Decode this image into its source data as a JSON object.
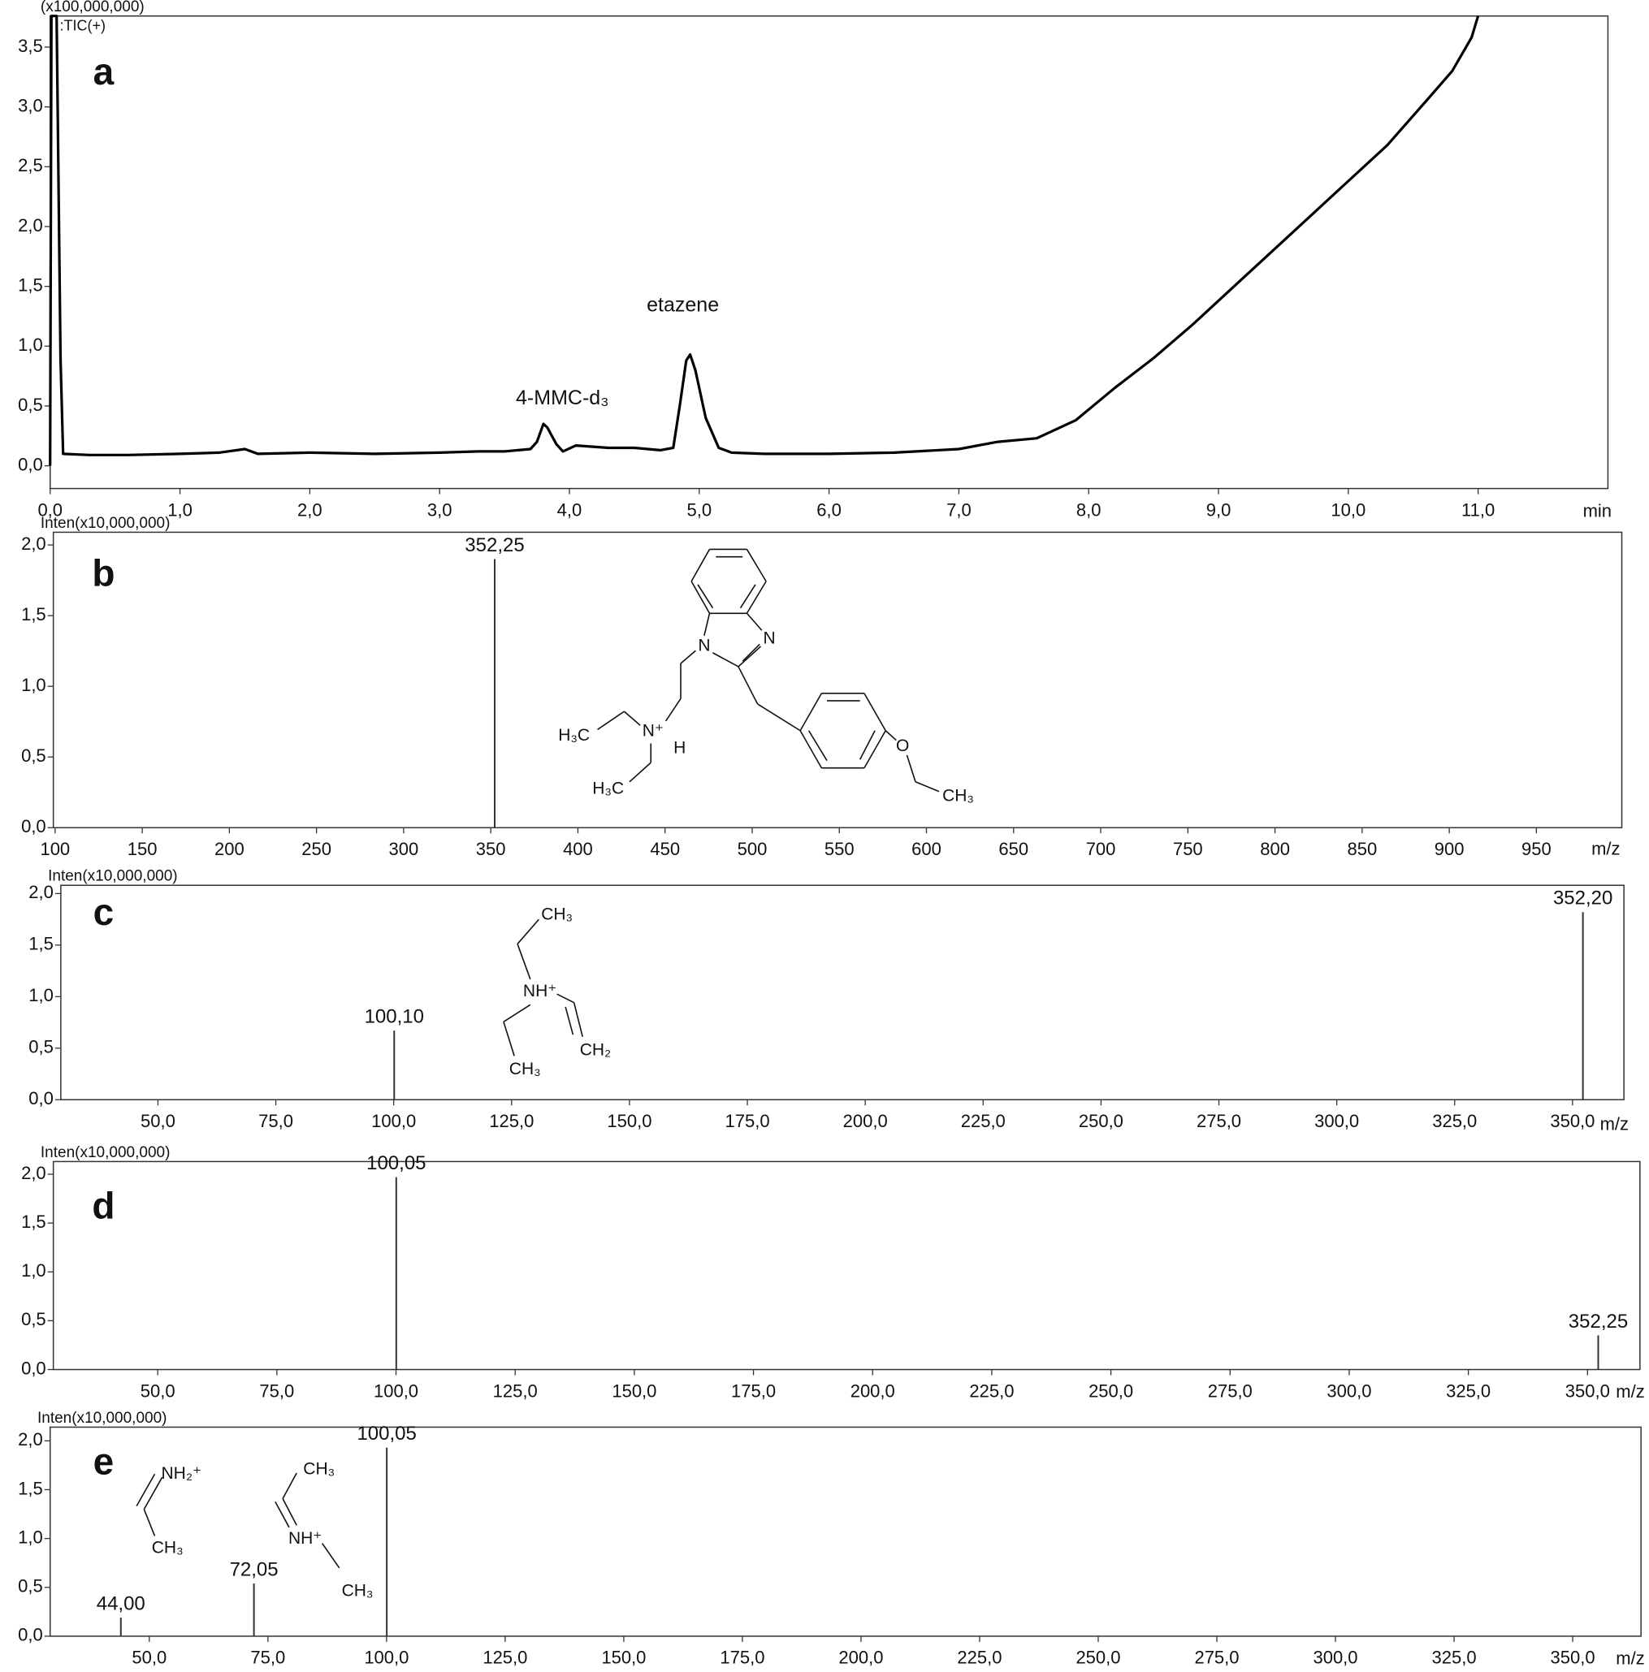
{
  "chart_data": [
    {
      "type": "line",
      "panel_label": "a",
      "y_axis_label": "(x100,000,000)",
      "trace_label": ":TIC(+)",
      "x_axis_label": "min",
      "annotations": [
        "4-MMC-d₃",
        "etazene"
      ],
      "color": "#000000",
      "x": [
        0,
        0.01,
        0.02,
        0.05,
        0.08,
        0.1,
        0.3,
        0.6,
        1.0,
        1.3,
        1.5,
        1.6,
        2.0,
        2.5,
        3.0,
        3.3,
        3.5,
        3.7,
        3.75,
        3.8,
        3.83,
        3.9,
        3.95,
        4.05,
        4.3,
        4.5,
        4.7,
        4.8,
        4.85,
        4.9,
        4.93,
        4.97,
        5.05,
        5.15,
        5.25,
        5.5,
        6.0,
        6.5,
        7.0,
        7.3,
        7.6,
        7.9,
        8.2,
        8.5,
        8.8,
        9.1,
        9.4,
        9.7,
        10.0,
        10.3,
        10.6,
        10.8,
        10.95,
        11.0
      ],
      "values": [
        0,
        3.76,
        3.76,
        3.76,
        0.9,
        0.1,
        0.09,
        0.09,
        0.1,
        0.11,
        0.14,
        0.1,
        0.11,
        0.1,
        0.11,
        0.12,
        0.12,
        0.14,
        0.2,
        0.35,
        0.32,
        0.18,
        0.12,
        0.17,
        0.15,
        0.15,
        0.13,
        0.15,
        0.5,
        0.88,
        0.93,
        0.8,
        0.4,
        0.15,
        0.11,
        0.1,
        0.1,
        0.11,
        0.14,
        0.2,
        0.23,
        0.38,
        0.65,
        0.9,
        1.18,
        1.48,
        1.78,
        2.08,
        2.38,
        2.68,
        3.05,
        3.3,
        3.58,
        3.76
      ],
      "xlim": [
        0,
        12.0
      ],
      "ylim": [
        -0.19,
        3.76
      ],
      "xticks": [
        {
          "value": 0,
          "label": "0,0"
        },
        {
          "value": 1,
          "label": "1,0"
        },
        {
          "value": 2,
          "label": "2,0"
        },
        {
          "value": 3,
          "label": "3,0"
        },
        {
          "value": 4,
          "label": "4,0"
        },
        {
          "value": 5,
          "label": "5,0"
        },
        {
          "value": 6,
          "label": "6,0"
        },
        {
          "value": 7,
          "label": "7,0"
        },
        {
          "value": 8,
          "label": "8,0"
        },
        {
          "value": 9,
          "label": "9,0"
        },
        {
          "value": 10,
          "label": "10,0"
        },
        {
          "value": 11,
          "label": "11,0"
        }
      ],
      "yticks": [
        {
          "value": 0,
          "label": "0,0"
        },
        {
          "value": 0.5,
          "label": "0,5"
        },
        {
          "value": 1,
          "label": "1,0"
        },
        {
          "value": 1.5,
          "label": "1,5"
        },
        {
          "value": 2,
          "label": "2,0"
        },
        {
          "value": 2.5,
          "label": "2,5"
        },
        {
          "value": 3,
          "label": "3,0"
        },
        {
          "value": 3.5,
          "label": "3,5"
        }
      ]
    },
    {
      "type": "stem",
      "panel_label": "b",
      "y_axis_label": "Inten(x10,000,000)",
      "x_axis_label": "m/z",
      "color": "#333333",
      "structure_labels": [
        "N",
        "N",
        "N⁺",
        "H",
        "H₃C",
        "H₃C",
        "O",
        "CH₃"
      ],
      "x": [
        352.25
      ],
      "x_labels": [
        "352,25"
      ],
      "values": [
        1.9
      ],
      "xlim": [
        99,
        999
      ],
      "ylim": [
        0,
        2.09
      ],
      "xticks": [
        100,
        150,
        200,
        250,
        300,
        350,
        400,
        450,
        500,
        550,
        600,
        650,
        700,
        750,
        800,
        850,
        900,
        950
      ],
      "yticks": [
        {
          "value": 0,
          "label": "0,0"
        },
        {
          "value": 0.5,
          "label": "0,5"
        },
        {
          "value": 1,
          "label": "1,0"
        },
        {
          "value": 1.5,
          "label": "1,5"
        },
        {
          "value": 2,
          "label": "2,0"
        }
      ]
    },
    {
      "type": "stem",
      "panel_label": "c",
      "y_axis_label": "Inten(x10,000,000)",
      "x_axis_label": "m/z",
      "color": "#333333",
      "structure_labels": [
        "CH₃",
        "NH⁺",
        "CH₂",
        "CH₃"
      ],
      "x": [
        100.1,
        352.2
      ],
      "x_labels": [
        "100,10",
        "352,20"
      ],
      "values": [
        0.67,
        1.82
      ],
      "xlim": [
        29.4,
        360.9
      ],
      "ylim": [
        0,
        2.08
      ],
      "xticks": [
        {
          "value": 50,
          "label": "50,0"
        },
        {
          "value": 75,
          "label": "75,0"
        },
        {
          "value": 100,
          "label": "100,0"
        },
        {
          "value": 125,
          "label": "125,0"
        },
        {
          "value": 150,
          "label": "150,0"
        },
        {
          "value": 175,
          "label": "175,0"
        },
        {
          "value": 200,
          "label": "200,0"
        },
        {
          "value": 225,
          "label": "225,0"
        },
        {
          "value": 250,
          "label": "250,0"
        },
        {
          "value": 275,
          "label": "275,0"
        },
        {
          "value": 300,
          "label": "300,0"
        },
        {
          "value": 325,
          "label": "325,0"
        },
        {
          "value": 350,
          "label": "350,0"
        }
      ],
      "yticks": [
        {
          "value": 0,
          "label": "0,0"
        },
        {
          "value": 0.5,
          "label": "0,5"
        },
        {
          "value": 1,
          "label": "1,0"
        },
        {
          "value": 1.5,
          "label": "1,5"
        },
        {
          "value": 2,
          "label": "2,0"
        }
      ]
    },
    {
      "type": "stem",
      "panel_label": "d",
      "y_axis_label": "Inten(x10,000,000)",
      "x_axis_label": "m/z",
      "color": "#333333",
      "x": [
        100.05,
        352.25
      ],
      "x_labels": [
        "100,05",
        "352,25"
      ],
      "values": [
        1.97,
        0.35
      ],
      "xlim": [
        28.1,
        361.0
      ],
      "ylim": [
        0,
        2.13
      ],
      "xticks": [
        {
          "value": 50,
          "label": "50,0"
        },
        {
          "value": 75,
          "label": "75,0"
        },
        {
          "value": 100,
          "label": "100,0"
        },
        {
          "value": 125,
          "label": "125,0"
        },
        {
          "value": 150,
          "label": "150,0"
        },
        {
          "value": 175,
          "label": "175,0"
        },
        {
          "value": 200,
          "label": "200,0"
        },
        {
          "value": 225,
          "label": "225,0"
        },
        {
          "value": 250,
          "label": "250,0"
        },
        {
          "value": 275,
          "label": "275,0"
        },
        {
          "value": 300,
          "label": "300,0"
        },
        {
          "value": 325,
          "label": "325,0"
        },
        {
          "value": 350,
          "label": "350,0"
        }
      ],
      "yticks": [
        {
          "value": 0,
          "label": "0,0"
        },
        {
          "value": 0.5,
          "label": "0,5"
        },
        {
          "value": 1,
          "label": "1,0"
        },
        {
          "value": 1.5,
          "label": "1,5"
        },
        {
          "value": 2,
          "label": "2,0"
        }
      ]
    },
    {
      "type": "stem",
      "panel_label": "e",
      "y_axis_label": "Inten(x10,000,000)",
      "x_axis_label": "m/z",
      "color": "#333333",
      "structure_labels": [
        "NH₂⁺",
        "CH₃",
        "CH₃",
        "NH⁺",
        "CH₃"
      ],
      "x": [
        44.0,
        72.05,
        100.05
      ],
      "x_labels": [
        "44,00",
        "72,05",
        "100,05"
      ],
      "values": [
        0.19,
        0.54,
        1.93
      ],
      "xlim": [
        29.1,
        364.4
      ],
      "ylim": [
        0,
        2.14
      ],
      "xticks": [
        {
          "value": 50,
          "label": "50,0"
        },
        {
          "value": 75,
          "label": "75,0"
        },
        {
          "value": 100,
          "label": "100,0"
        },
        {
          "value": 125,
          "label": "125,0"
        },
        {
          "value": 150,
          "label": "150,0"
        },
        {
          "value": 175,
          "label": "175,0"
        },
        {
          "value": 200,
          "label": "200,0"
        },
        {
          "value": 225,
          "label": "225,0"
        },
        {
          "value": 250,
          "label": "250,0"
        },
        {
          "value": 275,
          "label": "275,0"
        },
        {
          "value": 300,
          "label": "300,0"
        },
        {
          "value": 325,
          "label": "325,0"
        },
        {
          "value": 350,
          "label": "350,0"
        }
      ],
      "yticks": [
        {
          "value": 0,
          "label": "0,0"
        },
        {
          "value": 0.5,
          "label": "0,5"
        },
        {
          "value": 1,
          "label": "1,0"
        },
        {
          "value": 1.5,
          "label": "1,5"
        },
        {
          "value": 2,
          "label": "2,0"
        }
      ]
    }
  ]
}
